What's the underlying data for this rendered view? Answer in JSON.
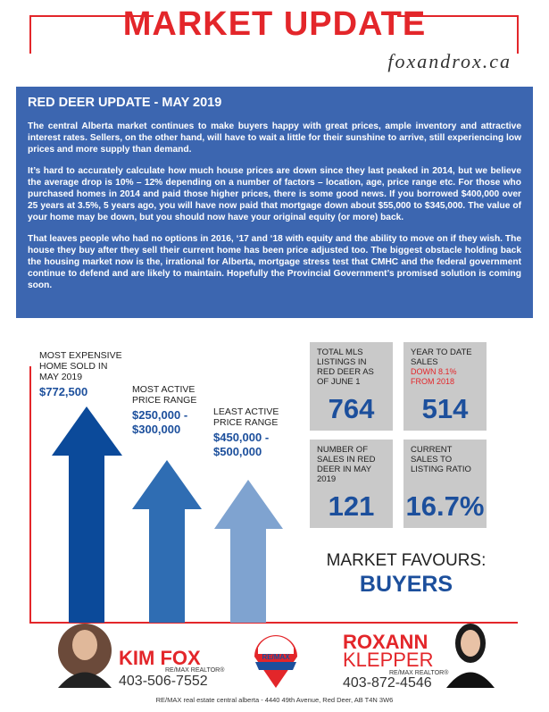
{
  "header": {
    "title": "MARKET UPDATE",
    "brand": "foxandrox.ca"
  },
  "update": {
    "heading": "RED DEER UPDATE - MAY 2019",
    "paragraphs": [
      "The central Alberta market continues to make buyers happy with great prices, ample inventory and attractive interest rates.  Sellers, on the other hand, will have to wait a little for their sunshine to arrive, still experiencing low prices and more supply than demand.",
      "It’s hard to accurately calculate how much house prices are down since they last peaked in 2014, but we believe the average drop is 10% – 12% depending on a number of factors – location, age, price range etc.  For those who purchased homes in 2014 and paid those higher prices, there is some good news.  If you borrowed $400,000 over 25 years at 3.5%, 5 years ago, you will have now paid that mortgage down about $55,000 to $345,000.  The value of your home may be down, but you should now have your original equity (or more) back.",
      "That leaves people who had no options in 2016, ‘17 and ‘18 with equity and the ability to move on if they wish.  The house they buy after they sell their current home has been price adjusted too.  The biggest obstacle holding back the housing market now is the, irrational for Alberta, mortgage stress test that CMHC and the federal government continue to defend and are likely to maintain.  Hopefully the Provincial Government’s promised solution is coming soon."
    ]
  },
  "arrows": [
    {
      "label": "MOST EXPENSIVE HOME SOLD IN MAY 2019",
      "value": "$772,500"
    },
    {
      "label": "MOST ACTIVE PRICE RANGE",
      "value": "$250,000 - $300,000"
    },
    {
      "label": "LEAST ACTIVE PRICE RANGE",
      "value": "$450,000 - $500,000"
    }
  ],
  "stats": [
    {
      "label": "TOTAL MLS LISTINGS IN RED DEER AS OF JUNE 1",
      "value": "764"
    },
    {
      "label": "YEAR TO DATE SALES",
      "note": "DOWN 8.1% FROM 2018",
      "value": "514"
    },
    {
      "label": "NUMBER OF SALES IN RED DEER IN MAY 2019",
      "value": "121"
    },
    {
      "label": "CURRENT SALES TO LISTING RATIO",
      "value": "16.7%"
    }
  ],
  "favours": {
    "label": "MARKET FAVOURS:",
    "value": "BUYERS"
  },
  "agents": [
    {
      "name": "KIM FOX",
      "title": "RE/MAX REALTOR®",
      "phone": "403-506-7552"
    },
    {
      "name": "ROXANN",
      "surname": "KLEPPER",
      "title": "RE/MAX REALTOR®",
      "phone": "403-872-4546"
    }
  ],
  "logo": "RE/MAX",
  "footer": "RE/MAX real estate central alberta  -  4440 49th Avenue, Red Deer, AB  T4N 3W6"
}
